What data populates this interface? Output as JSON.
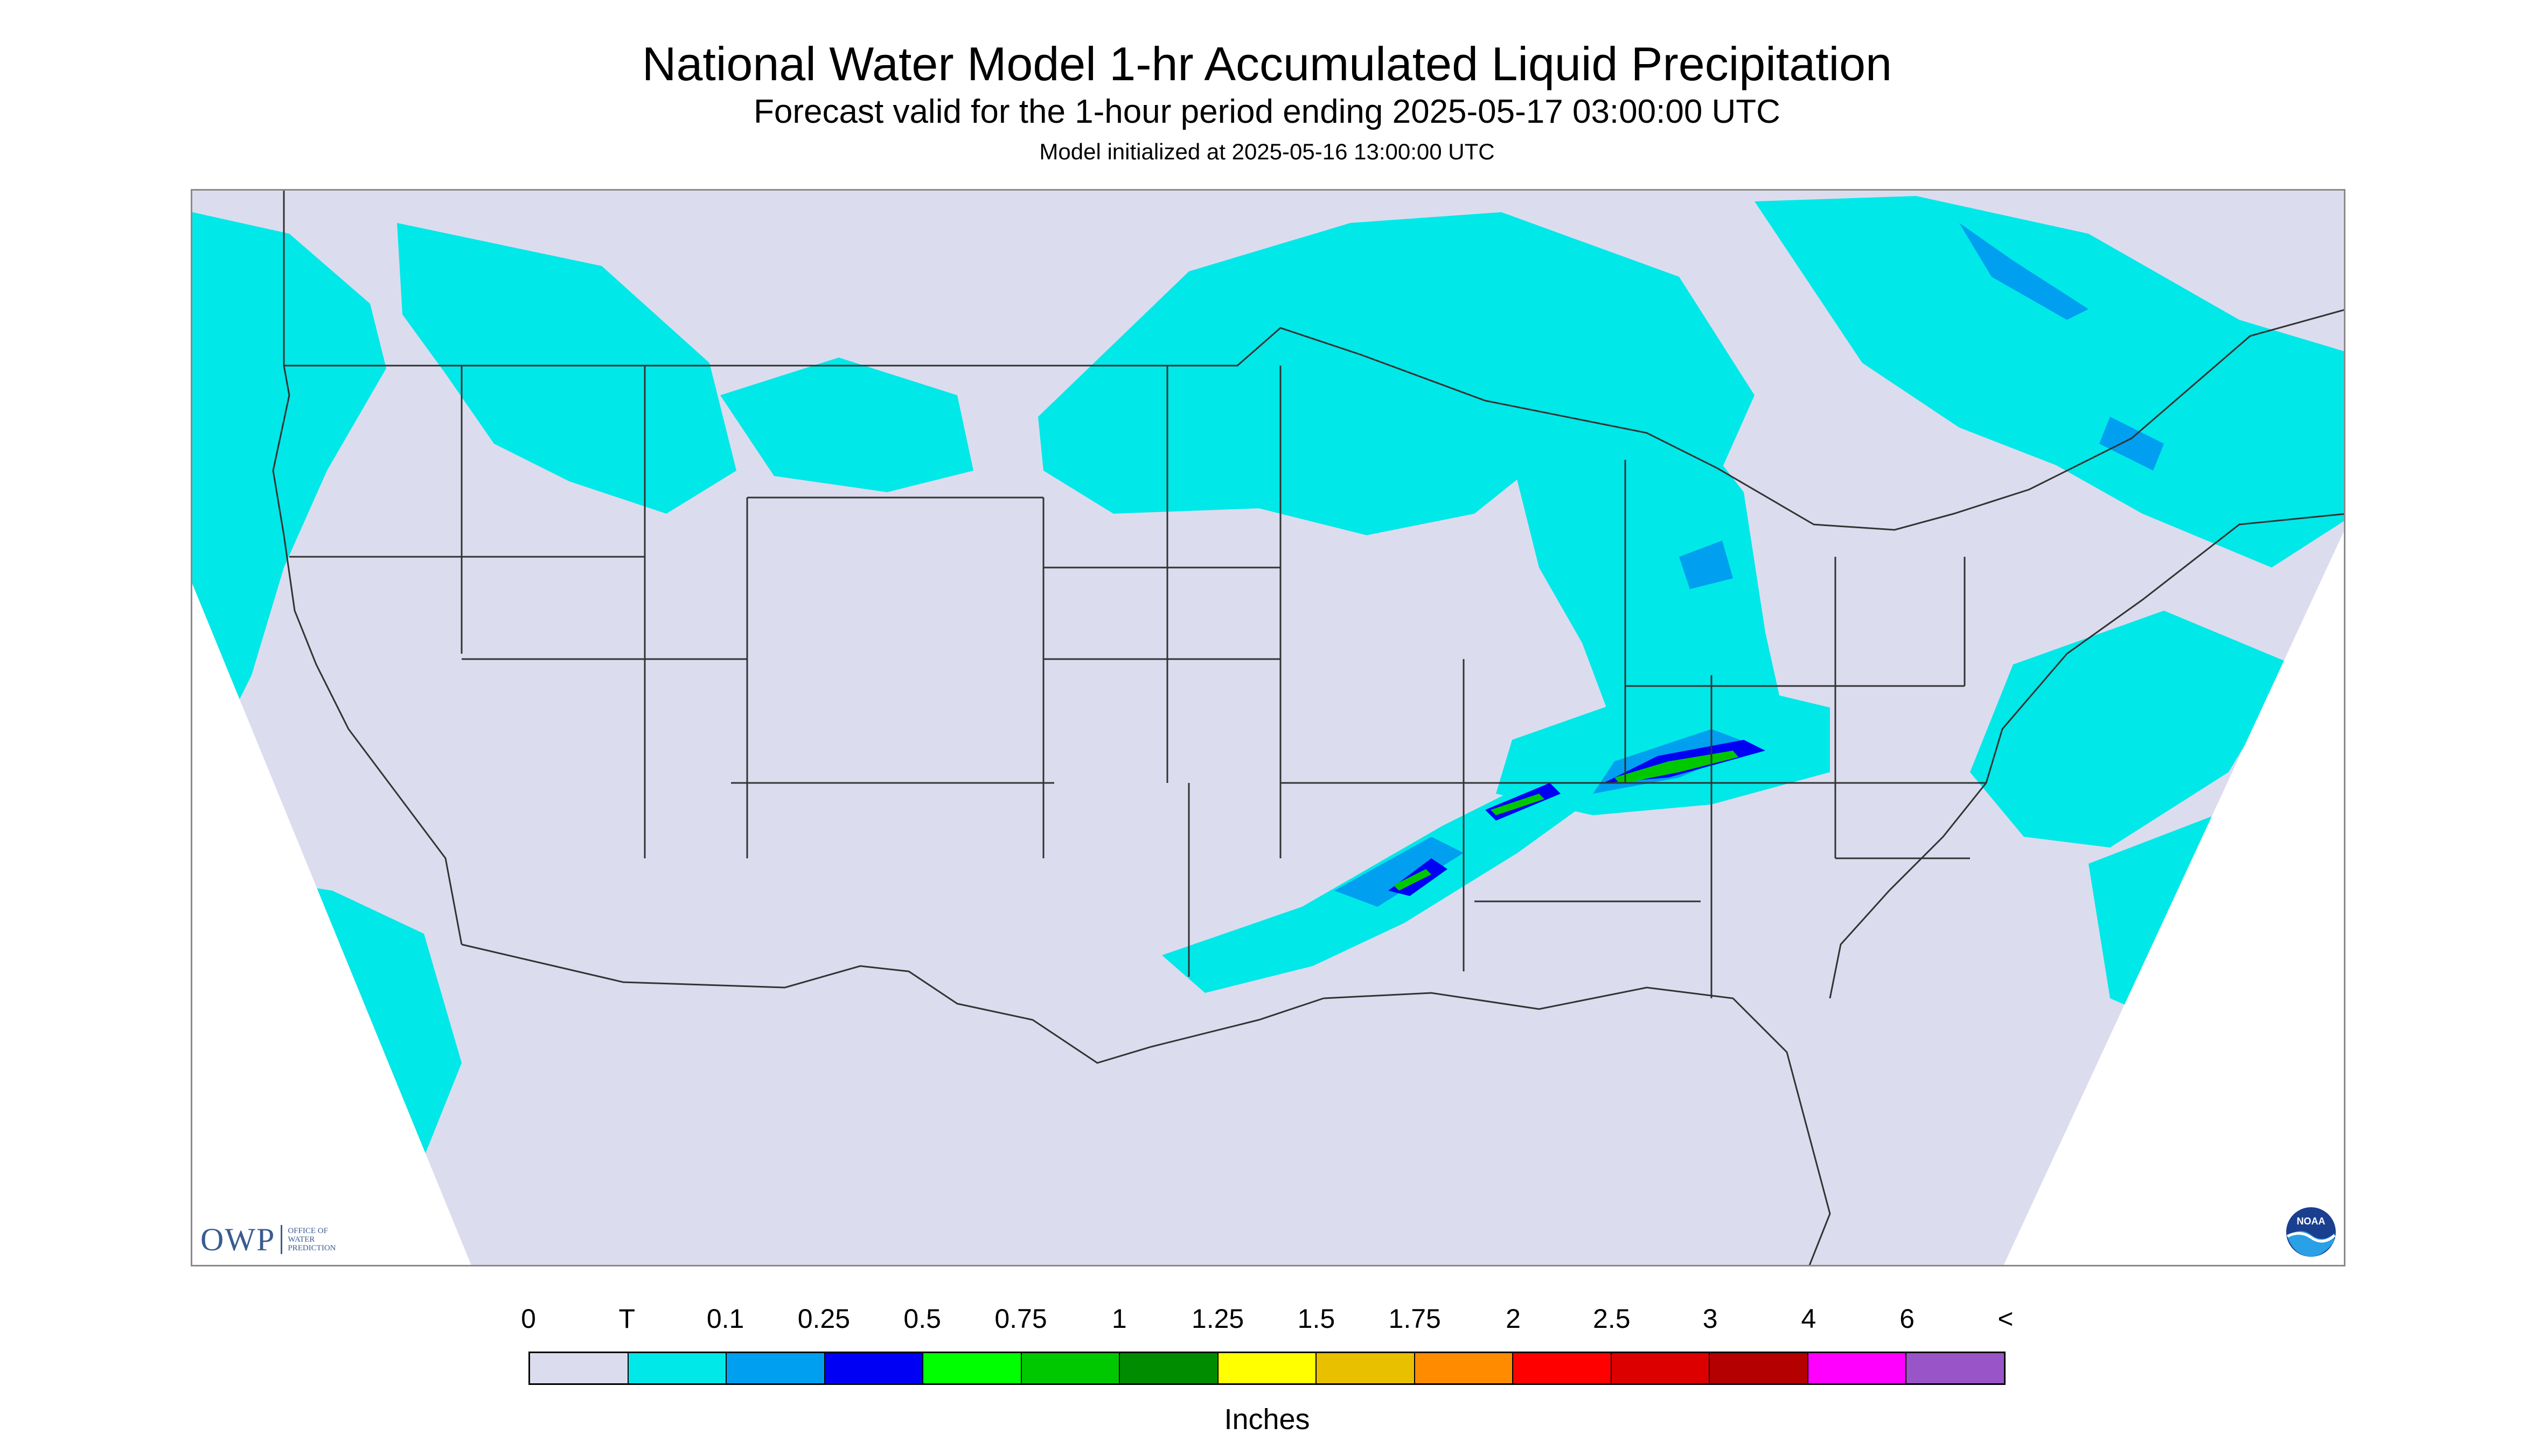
{
  "title": "National Water Model 1-hr Accumulated Liquid Precipitation",
  "subtitle": "Forecast valid for the 1-hour period ending 2025-05-17 03:00:00 UTC",
  "init_text": "Model initialized at 2025-05-16 13:00:00 UTC",
  "branding": {
    "owp_mark": "OWP",
    "owp_text": [
      "OFFICE OF",
      "WATER",
      "PREDICTION"
    ],
    "noaa_text": "NOAA"
  },
  "map": {
    "region": "CONUS",
    "background_color": "#dcdcef",
    "no_data_color": "#ffffff",
    "boundary_color": "#333333"
  },
  "legend": {
    "units": "Inches",
    "labels": [
      "0",
      "T",
      "0.1",
      "0.25",
      "0.5",
      "0.75",
      "1",
      "1.25",
      "1.5",
      "1.75",
      "2",
      "2.5",
      "3",
      "4",
      "6",
      "<"
    ],
    "colors": [
      "#dcdcef",
      "#00e8e8",
      "#009fef",
      "#0000f5",
      "#00ff00",
      "#00c800",
      "#008c00",
      "#ffff00",
      "#e8c000",
      "#ff8c00",
      "#ff0000",
      "#dc0000",
      "#b40000",
      "#ff00ff",
      "#9955c8"
    ]
  }
}
